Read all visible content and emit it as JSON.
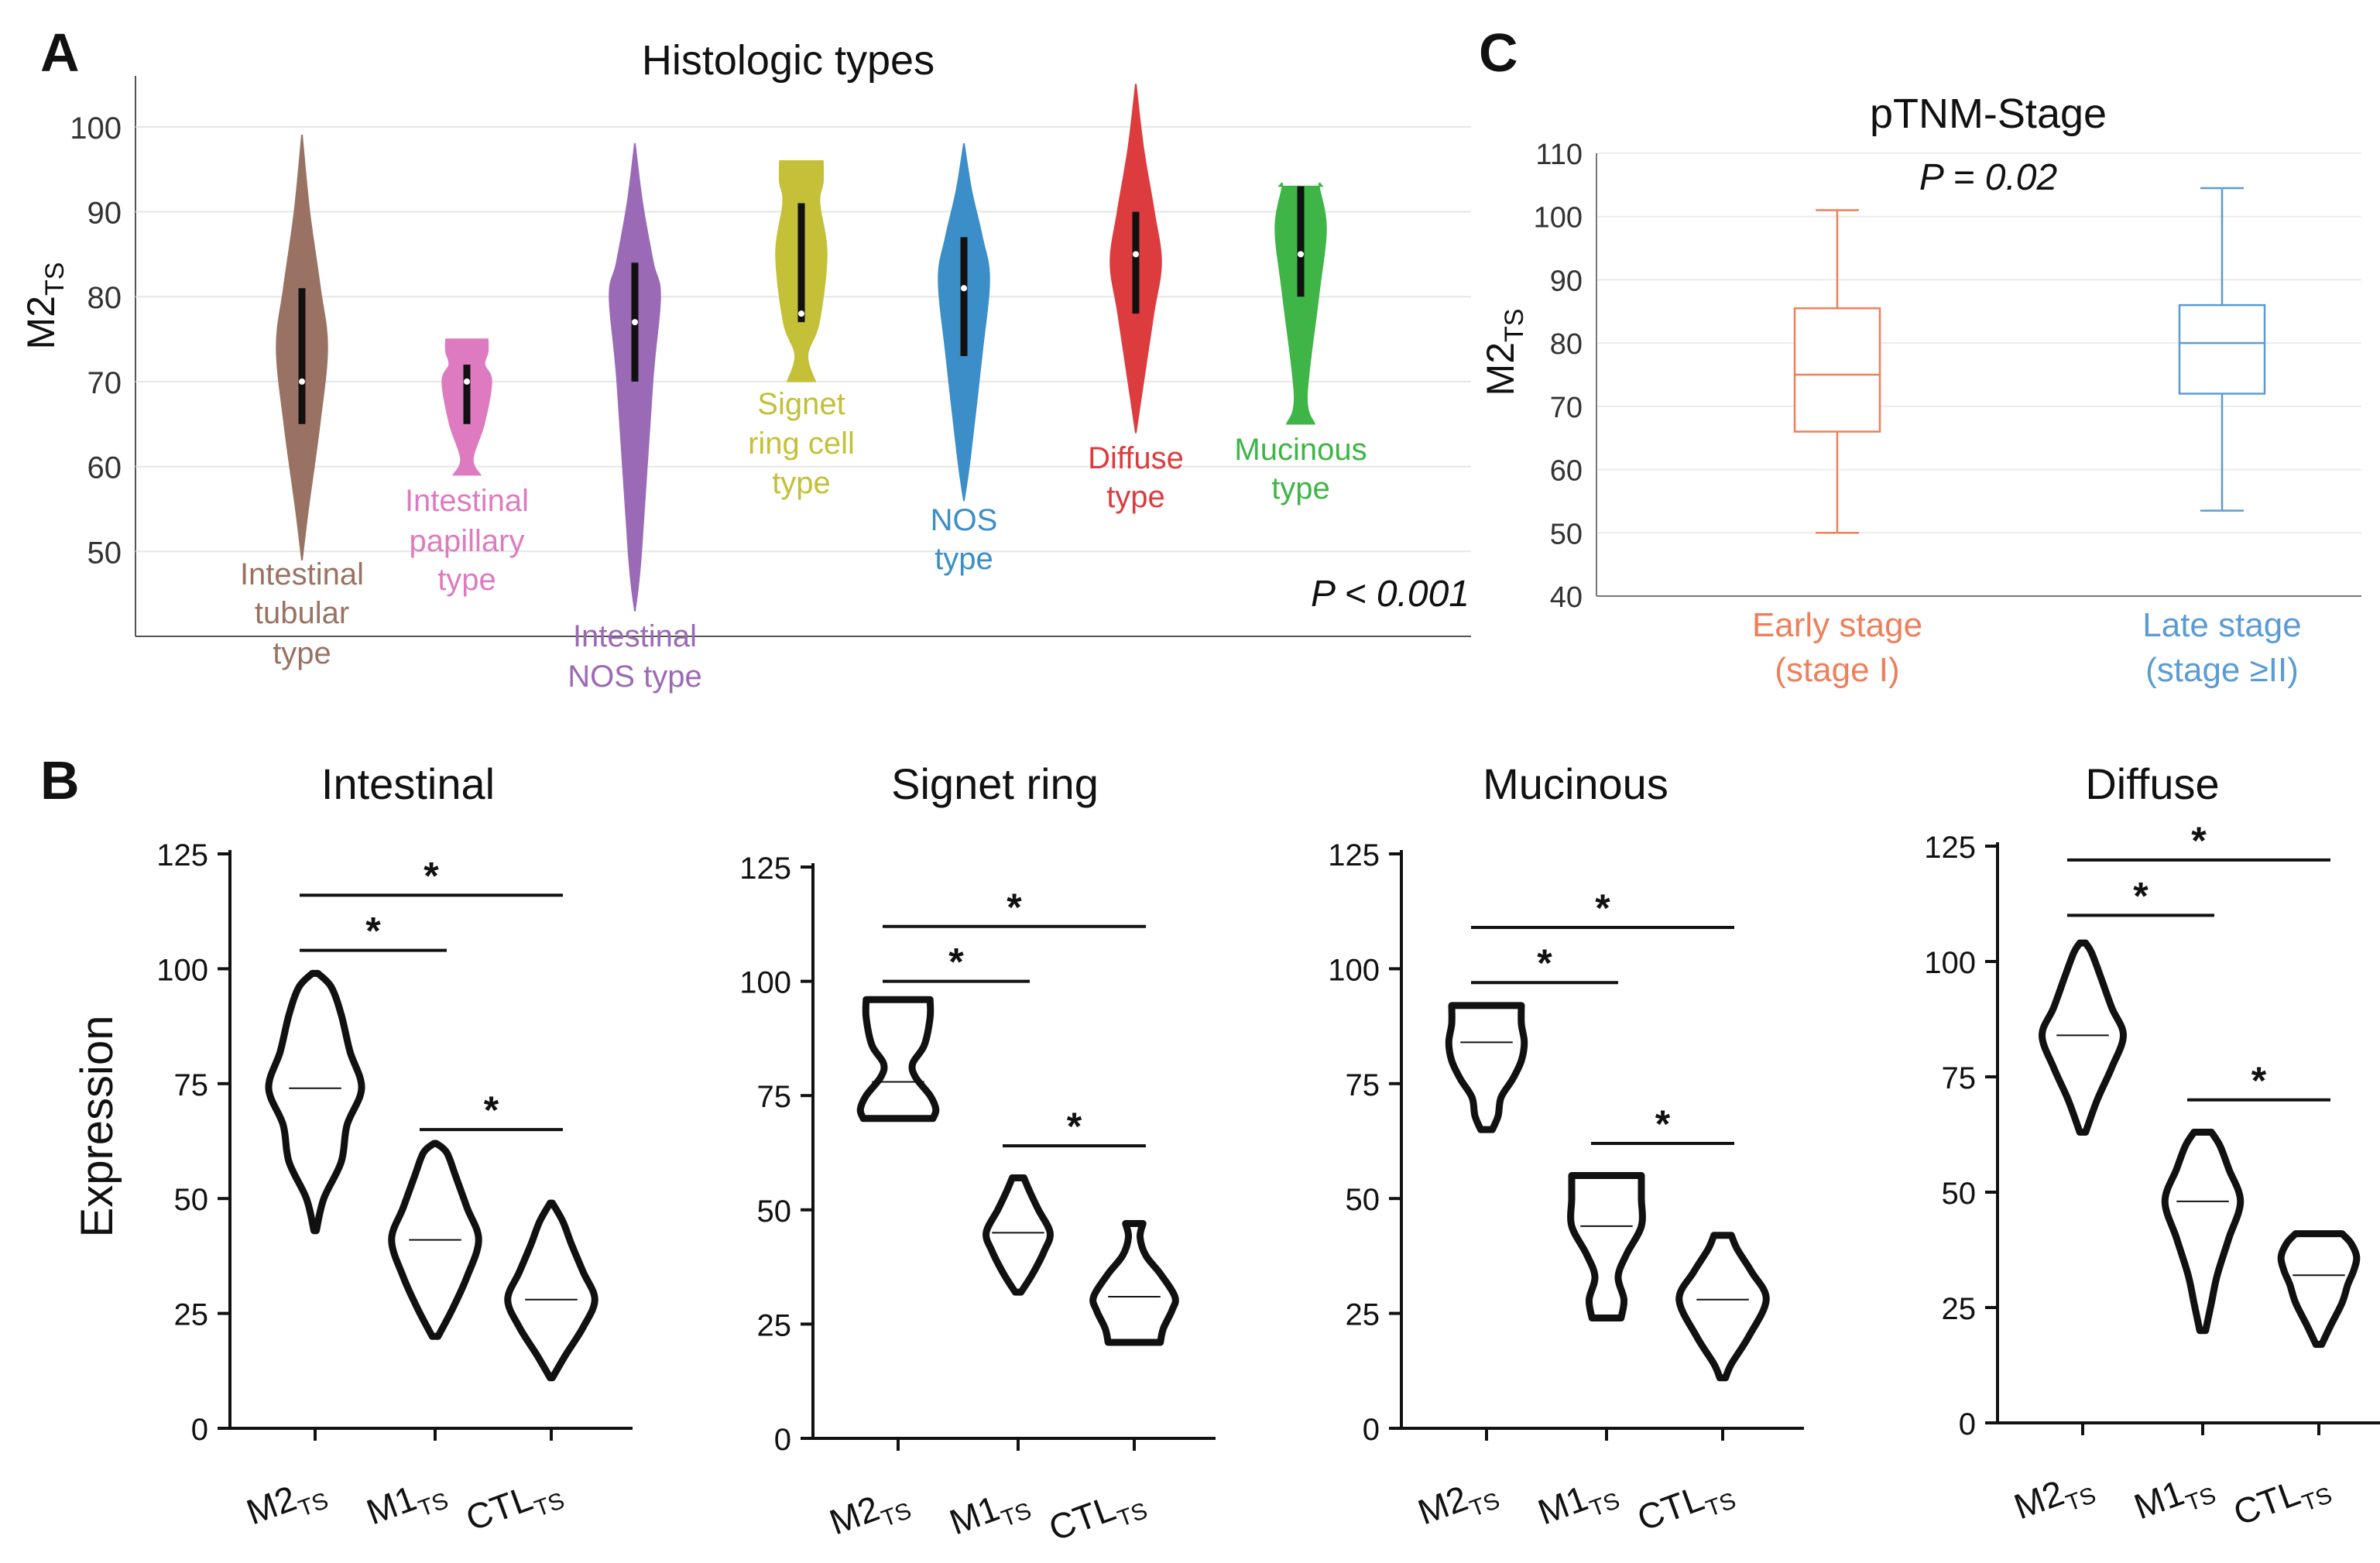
{
  "chart_data": [
    {
      "panel": "A",
      "type": "violin",
      "title": "Histologic types",
      "ylabel_main": "M2",
      "ylabel_sub": "TS",
      "ylim": [
        40,
        106
      ],
      "yticks": [
        50,
        60,
        70,
        80,
        90,
        100
      ],
      "p_text": "P < 0.001",
      "series": [
        {
          "name": "Intestinal tubular type",
          "label_lines": [
            "Intestinal",
            "tubular",
            "type"
          ],
          "color": "#9a7263",
          "min": 49,
          "max": 99,
          "q1": 65,
          "median": 70,
          "q3": 81,
          "widest": 74
        },
        {
          "name": "Intestinal papillary type",
          "label_lines": [
            "Intestinal",
            "papillary",
            "type"
          ],
          "color": "#de7bc0",
          "min": 59,
          "max": 75,
          "q1": 65,
          "median": 70,
          "q3": 72,
          "widest": 70
        },
        {
          "name": "Intestinal NOS type",
          "label_lines": [
            "Intestinal",
            "NOS type"
          ],
          "color": "#9b6ab7",
          "min": 43,
          "max": 98,
          "q1": 70,
          "median": 77,
          "q3": 84,
          "widest": 80
        },
        {
          "name": "Signet ring cell type",
          "label_lines": [
            "Signet",
            "ring cell",
            "type"
          ],
          "color": "#c4c038",
          "min": 70,
          "max": 96,
          "q1": 77,
          "median": 78,
          "q3": 91,
          "widest": 85
        },
        {
          "name": "NOS type",
          "label_lines": [
            "NOS",
            "type"
          ],
          "color": "#3b8ec8",
          "min": 56,
          "max": 98,
          "q1": 73,
          "median": 81,
          "q3": 87,
          "widest": 82
        },
        {
          "name": "Diffuse type",
          "label_lines": [
            "Diffuse",
            "type"
          ],
          "color": "#dd3c3f",
          "min": 64,
          "max": 105,
          "q1": 78,
          "median": 85,
          "q3": 90,
          "widest": 84
        },
        {
          "name": "Mucinous type",
          "label_lines": [
            "Mucinous",
            "type"
          ],
          "color": "#3eb546",
          "min": 65,
          "max": 93,
          "q1": 80,
          "median": 85,
          "q3": 93,
          "widest": 88
        }
      ]
    },
    {
      "panel": "C",
      "type": "box",
      "title": "pTNM-Stage",
      "ylabel_main": "M2",
      "ylabel_sub": "TS",
      "ylim": [
        40,
        110
      ],
      "yticks": [
        40,
        50,
        60,
        70,
        80,
        90,
        100,
        110
      ],
      "p_text": "P = 0.02",
      "series": [
        {
          "name": "Early stage (stage I)",
          "label_lines": [
            "Early stage",
            "(stage I)"
          ],
          "color": "#ef7f5a",
          "min": 50,
          "q1": 66,
          "median": 75,
          "q3": 85.5,
          "max": 101
        },
        {
          "name": "Late stage (stage ≥II)",
          "label_lines": [
            "Late stage",
            "(stage ≥II)"
          ],
          "color": "#5b9bd5",
          "min": 53.5,
          "q1": 72,
          "median": 80,
          "q3": 86,
          "max": 104.5
        }
      ]
    },
    {
      "panel": "B",
      "type": "violin",
      "ylabel": "Expression",
      "categories": [
        {
          "main": "M2",
          "sub": "TS"
        },
        {
          "main": "M1",
          "sub": "TS"
        },
        {
          "main": "CTL",
          "sub": "TS"
        }
      ],
      "yticks": [
        0,
        25,
        50,
        75,
        100,
        125
      ],
      "ylim": [
        0,
        125
      ],
      "subplots": [
        {
          "title": "Intestinal",
          "violins": [
            {
              "min": 43,
              "max": 99,
              "median": 74,
              "profile": [
                [
                  43,
                  0.02
                ],
                [
                  50,
                  0.15
                ],
                [
                  58,
                  0.45
                ],
                [
                  66,
                  0.55
                ],
                [
                  74,
                  0.8
                ],
                [
                  82,
                  0.6
                ],
                [
                  90,
                  0.45
                ],
                [
                  96,
                  0.28
                ],
                [
                  99,
                  0.05
                ]
              ]
            },
            {
              "min": 20,
              "max": 62,
              "median": 41,
              "profile": [
                [
                  20,
                  0.05
                ],
                [
                  26,
                  0.3
                ],
                [
                  33,
                  0.55
                ],
                [
                  41,
                  0.75
                ],
                [
                  48,
                  0.55
                ],
                [
                  55,
                  0.35
                ],
                [
                  60,
                  0.2
                ],
                [
                  62,
                  0.02
                ]
              ]
            },
            {
              "min": 11,
              "max": 49,
              "median": 28,
              "profile": [
                [
                  11,
                  0.02
                ],
                [
                  16,
                  0.25
                ],
                [
                  22,
                  0.55
                ],
                [
                  28,
                  0.75
                ],
                [
                  34,
                  0.55
                ],
                [
                  40,
                  0.35
                ],
                [
                  45,
                  0.2
                ],
                [
                  49,
                  0.02
                ]
              ]
            }
          ],
          "brackets": [
            {
              "from": 0,
              "to": 2,
              "y": 116
            },
            {
              "from": 0,
              "to": 1,
              "y": 104
            },
            {
              "from": 1,
              "to": 2,
              "y": 65
            }
          ]
        },
        {
          "title": "Signet ring",
          "violins": [
            {
              "min": 70,
              "max": 96,
              "median": 78,
              "profile": [
                [
                  70,
                  0.6
                ],
                [
                  72,
                  0.65
                ],
                [
                  75,
                  0.55
                ],
                [
                  79,
                  0.3
                ],
                [
                  82,
                  0.25
                ],
                [
                  86,
                  0.45
                ],
                [
                  92,
                  0.55
                ],
                [
                  96,
                  0.55
                ]
              ]
            },
            {
              "min": 32,
              "max": 57,
              "median": 45,
              "profile": [
                [
                  32,
                  0.05
                ],
                [
                  36,
                  0.25
                ],
                [
                  41,
                  0.45
                ],
                [
                  45,
                  0.55
                ],
                [
                  50,
                  0.35
                ],
                [
                  54,
                  0.2
                ],
                [
                  57,
                  0.1
                ]
              ]
            },
            {
              "min": 21,
              "max": 47,
              "median": 31,
              "profile": [
                [
                  21,
                  0.45
                ],
                [
                  24,
                  0.5
                ],
                [
                  28,
                  0.65
                ],
                [
                  31,
                  0.7
                ],
                [
                  36,
                  0.45
                ],
                [
                  40,
                  0.2
                ],
                [
                  44,
                  0.1
                ],
                [
                  47,
                  0.15
                ]
              ]
            }
          ],
          "brackets": [
            {
              "from": 0,
              "to": 2,
              "y": 112
            },
            {
              "from": 0,
              "to": 1,
              "y": 100
            },
            {
              "from": 1,
              "to": 2,
              "y": 64
            }
          ]
        },
        {
          "title": "Mucinous",
          "violins": [
            {
              "min": 65,
              "max": 92,
              "median": 84,
              "profile": [
                [
                  65,
                  0.1
                ],
                [
                  68,
                  0.2
                ],
                [
                  72,
                  0.25
                ],
                [
                  76,
                  0.45
                ],
                [
                  80,
                  0.6
                ],
                [
                  84,
                  0.65
                ],
                [
                  88,
                  0.6
                ],
                [
                  92,
                  0.6
                ]
              ]
            },
            {
              "min": 24,
              "max": 55,
              "median": 44,
              "profile": [
                [
                  24,
                  0.25
                ],
                [
                  28,
                  0.3
                ],
                [
                  33,
                  0.2
                ],
                [
                  38,
                  0.35
                ],
                [
                  44,
                  0.6
                ],
                [
                  50,
                  0.6
                ],
                [
                  55,
                  0.6
                ]
              ]
            },
            {
              "min": 11,
              "max": 42,
              "median": 28,
              "profile": [
                [
                  11,
                  0.05
                ],
                [
                  14,
                  0.15
                ],
                [
                  20,
                  0.45
                ],
                [
                  28,
                  0.75
                ],
                [
                  34,
                  0.5
                ],
                [
                  39,
                  0.25
                ],
                [
                  42,
                  0.15
                ]
              ]
            }
          ],
          "brackets": [
            {
              "from": 0,
              "to": 2,
              "y": 109
            },
            {
              "from": 0,
              "to": 1,
              "y": 97
            },
            {
              "from": 1,
              "to": 2,
              "y": 62
            }
          ]
        },
        {
          "title": "Diffuse",
          "violins": [
            {
              "min": 63,
              "max": 104,
              "median": 84,
              "profile": [
                [
                  63,
                  0.05
                ],
                [
                  70,
                  0.25
                ],
                [
                  77,
                  0.5
                ],
                [
                  84,
                  0.7
                ],
                [
                  90,
                  0.5
                ],
                [
                  97,
                  0.3
                ],
                [
                  102,
                  0.15
                ],
                [
                  104,
                  0.05
                ]
              ]
            },
            {
              "min": 20,
              "max": 63,
              "median": 48,
              "profile": [
                [
                  20,
                  0.05
                ],
                [
                  26,
                  0.15
                ],
                [
                  32,
                  0.25
                ],
                [
                  40,
                  0.45
                ],
                [
                  48,
                  0.65
                ],
                [
                  55,
                  0.45
                ],
                [
                  60,
                  0.3
                ],
                [
                  63,
                  0.15
                ]
              ]
            },
            {
              "min": 17,
              "max": 41,
              "median": 32,
              "profile": [
                [
                  17,
                  0.05
                ],
                [
                  21,
                  0.2
                ],
                [
                  26,
                  0.4
                ],
                [
                  30,
                  0.5
                ],
                [
                  33,
                  0.6
                ],
                [
                  36,
                  0.65
                ],
                [
                  39,
                  0.55
                ],
                [
                  41,
                  0.4
                ]
              ]
            }
          ],
          "brackets": [
            {
              "from": 0,
              "to": 2,
              "y": 122
            },
            {
              "from": 0,
              "to": 1,
              "y": 110
            },
            {
              "from": 1,
              "to": 2,
              "y": 70
            }
          ]
        }
      ]
    }
  ],
  "panel_labels": {
    "a": "A",
    "b": "B",
    "c": "C"
  },
  "significance_mark": "*"
}
